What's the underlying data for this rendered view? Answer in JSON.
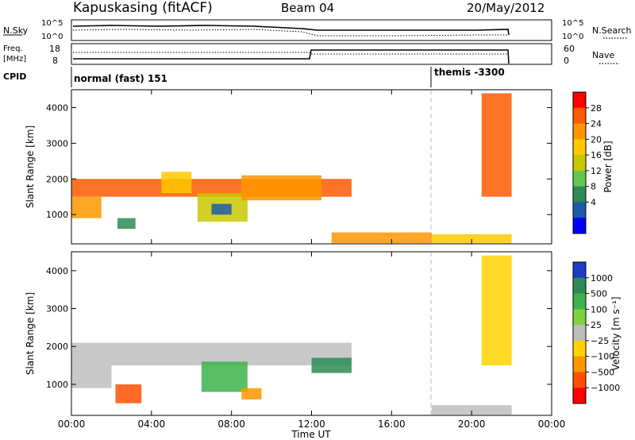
{
  "header": {
    "station": "Kapuskasing (fitACF)",
    "beam": "Beam 04",
    "date": "20/May/2012"
  },
  "summary_panels": {
    "nsky_label": "N.Sky",
    "nsky_ticks": [
      "10^5",
      "10^0"
    ],
    "nsearch_label": "N.Search",
    "freq_label_line1": "Freq.",
    "freq_label_line2": "[MHz]",
    "freq_ticks": [
      "18",
      "8"
    ],
    "nave_label": "Nave",
    "nave_ticks": [
      "60",
      "0"
    ],
    "cpid_label": "CPID",
    "cpid_segments": [
      {
        "label": "normal (fast) 151",
        "start": "00:00",
        "end": "18:00"
      },
      {
        "label": "themis -3300",
        "start": "18:00",
        "end": "22:00"
      }
    ]
  },
  "chart_data": [
    {
      "type": "heatmap",
      "name": "power",
      "ylabel": "Slant Range [km]",
      "xlabel": "Time UT",
      "x_ticks": [
        "00:00",
        "04:00",
        "08:00",
        "12:00",
        "16:00",
        "20:00",
        "00:00"
      ],
      "y_ticks": [
        1000,
        2000,
        3000,
        4000
      ],
      "ylim": [
        180,
        4500
      ],
      "xlim_hours": [
        0,
        24
      ],
      "colorbar_label": "Power [dB]",
      "colorbar_ticks": [
        "28",
        "24",
        "20",
        "16",
        "12",
        "8",
        "4"
      ],
      "colorbar_colors": [
        "#ff0000",
        "#ff5a00",
        "#ff9600",
        "#ffc800",
        "#c8c800",
        "#64c850",
        "#2e8b57",
        "#1e5aaa",
        "#0000ff"
      ],
      "regions": [
        {
          "t0": 0.0,
          "t1": 14.0,
          "r0": 1500,
          "r1": 2000,
          "level": 1
        },
        {
          "t0": 0.0,
          "t1": 1.5,
          "r0": 900,
          "r1": 1500,
          "level": 2
        },
        {
          "t0": 2.3,
          "t1": 3.2,
          "r0": 600,
          "r1": 900,
          "level": 6
        },
        {
          "t0": 4.5,
          "t1": 6.0,
          "r0": 1600,
          "r1": 2200,
          "level": 3
        },
        {
          "t0": 6.3,
          "t1": 8.8,
          "r0": 800,
          "r1": 1600,
          "level": 4
        },
        {
          "t0": 7.0,
          "t1": 8.0,
          "r0": 1000,
          "r1": 1300,
          "level": 7
        },
        {
          "t0": 8.5,
          "t1": 12.5,
          "r0": 1400,
          "r1": 2100,
          "level": 2
        },
        {
          "t0": 18.0,
          "t1": 22.0,
          "r0": 200,
          "r1": 450,
          "level": 3
        },
        {
          "t0": 13.0,
          "t1": 18.0,
          "r0": 200,
          "r1": 500,
          "level": 2
        },
        {
          "t0": 20.5,
          "t1": 22.0,
          "r0": 1500,
          "r1": 4400,
          "level": 1
        }
      ]
    },
    {
      "type": "heatmap",
      "name": "velocity",
      "ylabel": "Slant Range [km]",
      "xlabel": "Time UT",
      "x_ticks": [
        "00:00",
        "04:00",
        "08:00",
        "12:00",
        "16:00",
        "20:00",
        "00:00"
      ],
      "y_ticks": [
        1000,
        2000,
        3000,
        4000
      ],
      "ylim": [
        180,
        4500
      ],
      "xlim_hours": [
        0,
        24
      ],
      "colorbar_label": "Velocity [m s⁻¹]",
      "colorbar_ticks": [
        "1000",
        "500",
        "100",
        "25",
        "−25",
        "−100",
        "−500",
        "−1000"
      ],
      "colorbar_colors": [
        "#1e3cc8",
        "#2e8b57",
        "#3cb44b",
        "#7ed23c",
        "#bebebe",
        "#ffd200",
        "#ff9600",
        "#ff5000",
        "#ff0000"
      ],
      "regions": [
        {
          "t0": 0.0,
          "t1": 14.0,
          "r0": 1500,
          "r1": 2100,
          "level": 4
        },
        {
          "t0": 0.0,
          "t1": 2.0,
          "r0": 900,
          "r1": 1500,
          "level": 4
        },
        {
          "t0": 2.2,
          "t1": 3.5,
          "r0": 500,
          "r1": 1000,
          "level": 7
        },
        {
          "t0": 6.5,
          "t1": 8.8,
          "r0": 800,
          "r1": 1600,
          "level": 2
        },
        {
          "t0": 8.5,
          "t1": 9.5,
          "r0": 600,
          "r1": 900,
          "level": 6
        },
        {
          "t0": 12.0,
          "t1": 14.0,
          "r0": 1300,
          "r1": 1700,
          "level": 1
        },
        {
          "t0": 18.0,
          "t1": 22.0,
          "r0": 200,
          "r1": 450,
          "level": 4
        },
        {
          "t0": 20.5,
          "t1": 22.0,
          "r0": 1500,
          "r1": 4400,
          "level": 5
        }
      ]
    }
  ]
}
